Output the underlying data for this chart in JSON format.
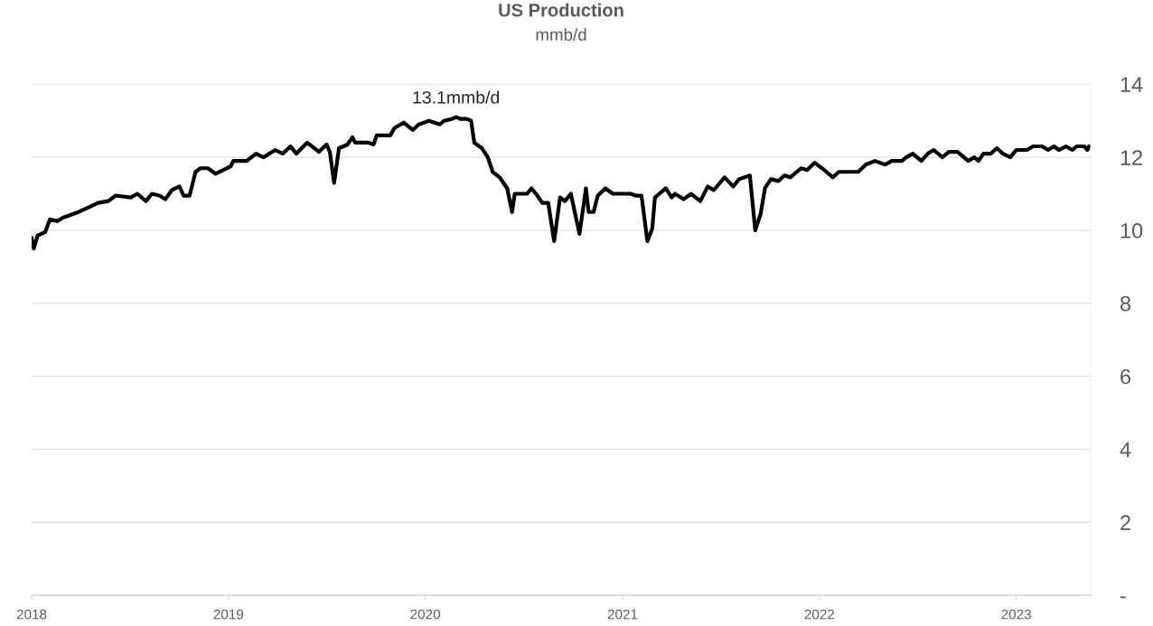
{
  "chart_data": {
    "type": "line",
    "title": "US Production",
    "subtitle": "mmb/d",
    "x": [
      "2018-01-01",
      "2018-01-05",
      "2018-01-12",
      "2018-01-26",
      "2018-02-04",
      "2018-02-17",
      "2018-03-01",
      "2018-03-29",
      "2018-04-20",
      "2018-05-04",
      "2018-05-23",
      "2018-06-06",
      "2018-07-04",
      "2018-07-16",
      "2018-08-01",
      "2018-08-12",
      "2018-08-26",
      "2018-09-06",
      "2018-09-18",
      "2018-10-02",
      "2018-10-10",
      "2018-10-21",
      "2018-11-01",
      "2018-11-10",
      "2018-11-24",
      "2018-12-08",
      "2018-12-22",
      "2019-01-05",
      "2019-01-10",
      "2019-02-04",
      "2019-02-21",
      "2019-03-07",
      "2019-03-29",
      "2019-04-12",
      "2019-04-26",
      "2019-05-07",
      "2019-05-27",
      "2019-06-18",
      "2019-07-02",
      "2019-07-08",
      "2019-07-16",
      "2019-07-25",
      "2019-08-10",
      "2019-08-19",
      "2019-08-24",
      "2019-09-18",
      "2019-09-27",
      "2019-10-03",
      "2019-10-28",
      "2019-11-05",
      "2019-11-22",
      "2019-12-09",
      "2019-12-20",
      "2020-01-08",
      "2020-01-28",
      "2020-02-05",
      "2020-02-19",
      "2020-02-27",
      "2020-03-07",
      "2020-03-18",
      "2020-03-26",
      "2020-04-01",
      "2020-04-15",
      "2020-04-26",
      "2020-05-05",
      "2020-05-18",
      "2020-06-01",
      "2020-06-10",
      "2020-06-15",
      "2020-07-08",
      "2020-07-16",
      "2020-07-27",
      "2020-08-05",
      "2020-08-16",
      "2020-08-27",
      "2020-09-07",
      "2020-09-16",
      "2020-09-27",
      "2020-10-13",
      "2020-10-25",
      "2020-10-30",
      "2020-11-08",
      "2020-11-16",
      "2020-11-30",
      "2020-12-14",
      "2021-01-16",
      "2021-01-25",
      "2021-02-05",
      "2021-02-16",
      "2021-02-25",
      "2021-03-02",
      "2021-03-10",
      "2021-03-22",
      "2021-04-02",
      "2021-04-08",
      "2021-04-24",
      "2021-05-08",
      "2021-05-25",
      "2021-06-08",
      "2021-06-19",
      "2021-07-09",
      "2021-07-25",
      "2021-08-05",
      "2021-08-25",
      "2021-09-04",
      "2021-09-14",
      "2021-09-22",
      "2021-10-03",
      "2021-10-17",
      "2021-10-28",
      "2021-11-08",
      "2021-11-28",
      "2021-12-09",
      "2021-12-23",
      "2022-01-06",
      "2022-01-26",
      "2022-02-06",
      "2022-03-14",
      "2022-03-28",
      "2022-04-14",
      "2022-05-03",
      "2022-05-15",
      "2022-06-03",
      "2022-06-11",
      "2022-06-23",
      "2022-07-09",
      "2022-07-21",
      "2022-08-01",
      "2022-08-17",
      "2022-08-29",
      "2022-09-14",
      "2022-10-04",
      "2022-10-15",
      "2022-10-23",
      "2022-11-01",
      "2022-11-15",
      "2022-11-26",
      "2022-12-07",
      "2022-12-21",
      "2023-01-01",
      "2023-01-21",
      "2023-02-01",
      "2023-02-18",
      "2023-03-01",
      "2023-03-12",
      "2023-03-21",
      "2023-04-03",
      "2023-04-15",
      "2023-04-23",
      "2023-05-07",
      "2023-05-13",
      "2023-05-16"
    ],
    "series": [
      {
        "color": "#000000",
        "values": [
          9.8,
          9.5,
          9.85,
          9.95,
          10.3,
          10.25,
          10.35,
          10.5,
          10.65,
          10.75,
          10.8,
          10.95,
          10.9,
          11.0,
          10.8,
          11.0,
          10.95,
          10.85,
          11.1,
          11.2,
          10.95,
          10.95,
          11.6,
          11.7,
          11.7,
          11.55,
          11.65,
          11.75,
          11.9,
          11.9,
          12.1,
          12.0,
          12.2,
          12.1,
          12.3,
          12.1,
          12.4,
          12.15,
          12.35,
          12.15,
          11.3,
          12.25,
          12.35,
          12.55,
          12.4,
          12.4,
          12.35,
          12.6,
          12.6,
          12.8,
          12.95,
          12.75,
          12.9,
          13.0,
          12.9,
          13.0,
          13.05,
          13.1,
          13.05,
          13.05,
          13.0,
          12.4,
          12.25,
          12.0,
          11.6,
          11.45,
          11.15,
          10.5,
          11.0,
          11.0,
          11.15,
          10.95,
          10.75,
          10.75,
          9.7,
          10.9,
          10.8,
          11.0,
          9.9,
          11.15,
          10.5,
          10.5,
          10.95,
          11.15,
          11.0,
          11.0,
          10.95,
          10.95,
          9.7,
          10.05,
          10.9,
          11.0,
          11.15,
          10.9,
          11.0,
          10.85,
          11.0,
          10.8,
          11.2,
          11.1,
          11.45,
          11.2,
          11.4,
          11.5,
          10.0,
          10.45,
          11.15,
          11.4,
          11.35,
          11.5,
          11.45,
          11.7,
          11.65,
          11.85,
          11.7,
          11.45,
          11.6,
          11.6,
          11.8,
          11.9,
          11.8,
          11.9,
          11.9,
          12.0,
          12.1,
          11.9,
          12.1,
          12.2,
          12.0,
          12.15,
          12.15,
          11.9,
          12.0,
          11.9,
          12.1,
          12.1,
          12.25,
          12.1,
          12.0,
          12.2,
          12.2,
          12.3,
          12.3,
          12.2,
          12.3,
          12.2,
          12.3,
          12.2,
          12.3,
          12.3,
          12.2,
          12.3
        ]
      }
    ],
    "xlim": [
      "2018-01-01",
      "2023-05-19"
    ],
    "xticks": [
      {
        "value": "2018-01-01",
        "label": "2018"
      },
      {
        "value": "2019-01-01",
        "label": "2019"
      },
      {
        "value": "2020-01-01",
        "label": "2020"
      },
      {
        "value": "2021-01-01",
        "label": "2021"
      },
      {
        "value": "2022-01-01",
        "label": "2022"
      },
      {
        "value": "2023-01-01",
        "label": "2023"
      }
    ],
    "ylim": [
      0,
      14
    ],
    "yticks": [
      {
        "value": 0,
        "label": "-"
      },
      2,
      4,
      6,
      8,
      10,
      12,
      14
    ],
    "grid": "y",
    "annotations": [
      {
        "text": "13.1mmb/d",
        "x": "2020-02-27",
        "y": 13.1
      }
    ]
  }
}
